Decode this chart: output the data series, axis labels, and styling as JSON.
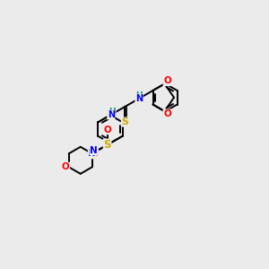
{
  "bg_color": "#ebebeb",
  "atom_colors": {
    "C": "#000000",
    "N": "#0000ff",
    "O": "#ff0000",
    "S_thio": "#ccaa00",
    "S_sulfonyl": "#ccaa00",
    "H": "#008888"
  },
  "bond_color": "#000000",
  "bond_lw": 1.4,
  "ring_r": 0.52,
  "mol_scale": 1.0
}
